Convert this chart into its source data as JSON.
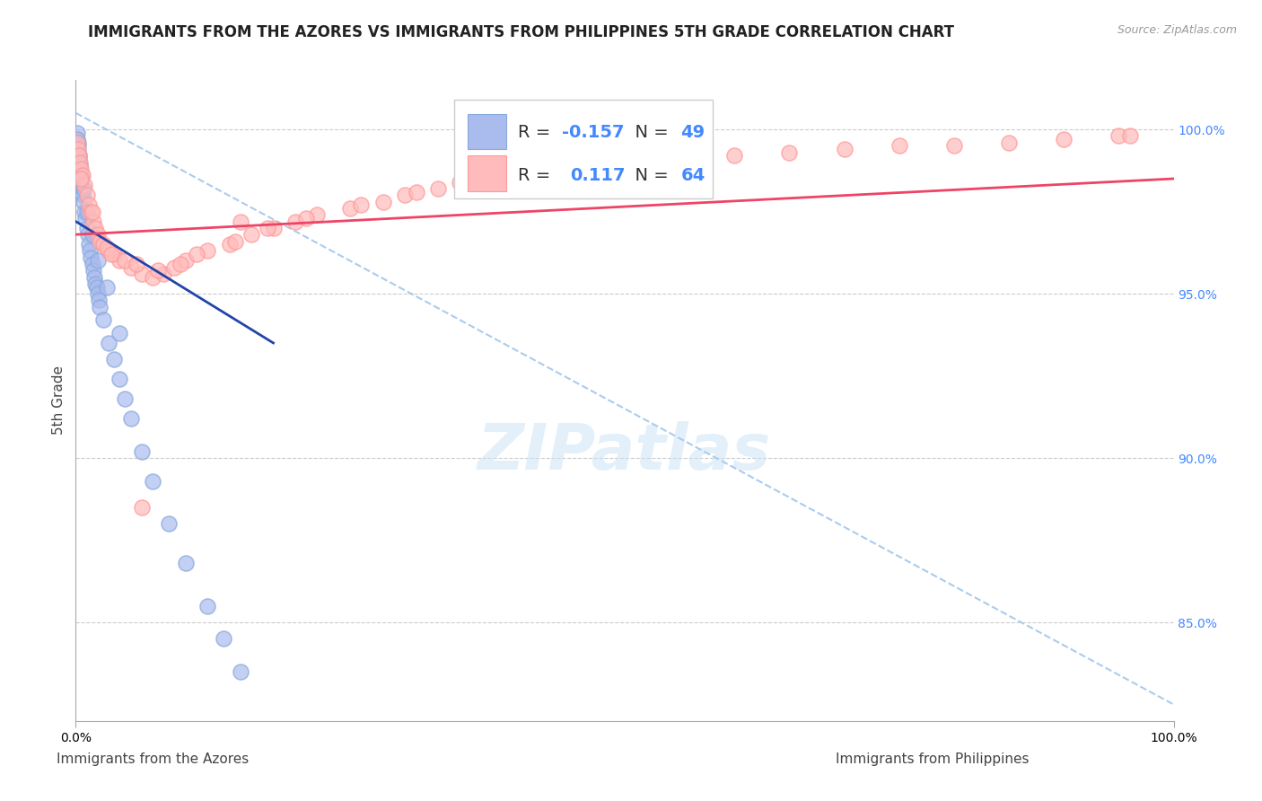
{
  "title": "IMMIGRANTS FROM THE AZORES VS IMMIGRANTS FROM PHILIPPINES 5TH GRADE CORRELATION CHART",
  "source": "Source: ZipAtlas.com",
  "xlabel_left": "Immigrants from the Azores",
  "xlabel_right": "Immigrants from Philippines",
  "ylabel": "5th Grade",
  "right_yticks": [
    100.0,
    95.0,
    90.0,
    85.0
  ],
  "right_ytick_labels": [
    "100.0%",
    "95.0%",
    "90.0%",
    "85.0%"
  ],
  "xtick_labels": [
    "0.0%",
    "100.0%"
  ],
  "R_blue": -0.157,
  "N_blue": 49,
  "R_pink": 0.117,
  "N_pink": 64,
  "blue_color": "#88AADD",
  "pink_color": "#FF9999",
  "blue_fill": "#AABBEE",
  "pink_fill": "#FFBBBB",
  "blue_line_color": "#2244AA",
  "pink_line_color": "#EE4466",
  "diag_line_color": "#AACCEE",
  "blue_scatter_x": [
    0.1,
    0.15,
    0.2,
    0.25,
    0.3,
    0.35,
    0.4,
    0.45,
    0.5,
    0.55,
    0.6,
    0.7,
    0.8,
    0.9,
    1.0,
    1.1,
    1.2,
    1.3,
    1.4,
    1.5,
    1.6,
    1.7,
    1.8,
    1.9,
    2.0,
    2.1,
    2.2,
    2.5,
    3.0,
    3.5,
    4.0,
    4.5,
    5.0,
    6.0,
    7.0,
    8.5,
    10.0,
    12.0,
    13.5,
    15.0,
    0.2,
    0.3,
    0.5,
    0.7,
    1.0,
    1.5,
    2.0,
    2.8,
    4.0
  ],
  "blue_scatter_y": [
    99.9,
    99.7,
    99.5,
    99.3,
    99.1,
    98.9,
    98.7,
    98.5,
    98.3,
    98.1,
    98.0,
    97.8,
    97.5,
    97.3,
    97.0,
    96.8,
    96.5,
    96.3,
    96.1,
    95.9,
    95.7,
    95.5,
    95.3,
    95.2,
    95.0,
    94.8,
    94.6,
    94.2,
    93.5,
    93.0,
    92.4,
    91.8,
    91.2,
    90.2,
    89.3,
    88.0,
    86.8,
    85.5,
    84.5,
    83.5,
    99.6,
    99.2,
    98.6,
    98.2,
    97.5,
    96.8,
    96.0,
    95.2,
    93.8
  ],
  "pink_scatter_x": [
    0.15,
    0.2,
    0.3,
    0.4,
    0.5,
    0.6,
    0.8,
    1.0,
    1.2,
    1.4,
    1.6,
    1.8,
    2.0,
    2.2,
    2.5,
    3.0,
    3.5,
    4.0,
    5.0,
    6.0,
    7.0,
    8.0,
    9.0,
    10.0,
    12.0,
    14.0,
    16.0,
    18.0,
    20.0,
    22.0,
    25.0,
    28.0,
    30.0,
    33.0,
    2.8,
    3.2,
    4.5,
    5.5,
    7.5,
    9.5,
    11.0,
    14.5,
    17.5,
    21.0,
    26.0,
    31.0,
    35.0,
    40.0,
    45.0,
    50.0,
    55.0,
    60.0,
    65.0,
    70.0,
    75.0,
    80.0,
    85.0,
    90.0,
    95.0,
    96.0,
    0.5,
    1.5,
    6.0,
    15.0
  ],
  "pink_scatter_y": [
    99.6,
    99.4,
    99.2,
    99.0,
    98.8,
    98.6,
    98.3,
    98.0,
    97.7,
    97.5,
    97.2,
    97.0,
    96.8,
    96.6,
    96.5,
    96.3,
    96.2,
    96.0,
    95.8,
    95.6,
    95.5,
    95.6,
    95.8,
    96.0,
    96.3,
    96.5,
    96.8,
    97.0,
    97.2,
    97.4,
    97.6,
    97.8,
    98.0,
    98.2,
    96.4,
    96.2,
    96.0,
    95.9,
    95.7,
    95.9,
    96.2,
    96.6,
    97.0,
    97.3,
    97.7,
    98.1,
    98.4,
    98.6,
    98.8,
    99.0,
    99.1,
    99.2,
    99.3,
    99.4,
    99.5,
    99.5,
    99.6,
    99.7,
    99.8,
    99.8,
    98.5,
    97.5,
    88.5,
    97.2
  ],
  "xmin": 0.0,
  "xmax": 100.0,
  "ymin": 82.0,
  "ymax": 101.5,
  "background_color": "#FFFFFF",
  "grid_color": "#CCCCCC",
  "title_fontsize": 12,
  "source_fontsize": 9,
  "axis_label_fontsize": 11,
  "tick_fontsize": 10,
  "legend_fontsize": 14
}
